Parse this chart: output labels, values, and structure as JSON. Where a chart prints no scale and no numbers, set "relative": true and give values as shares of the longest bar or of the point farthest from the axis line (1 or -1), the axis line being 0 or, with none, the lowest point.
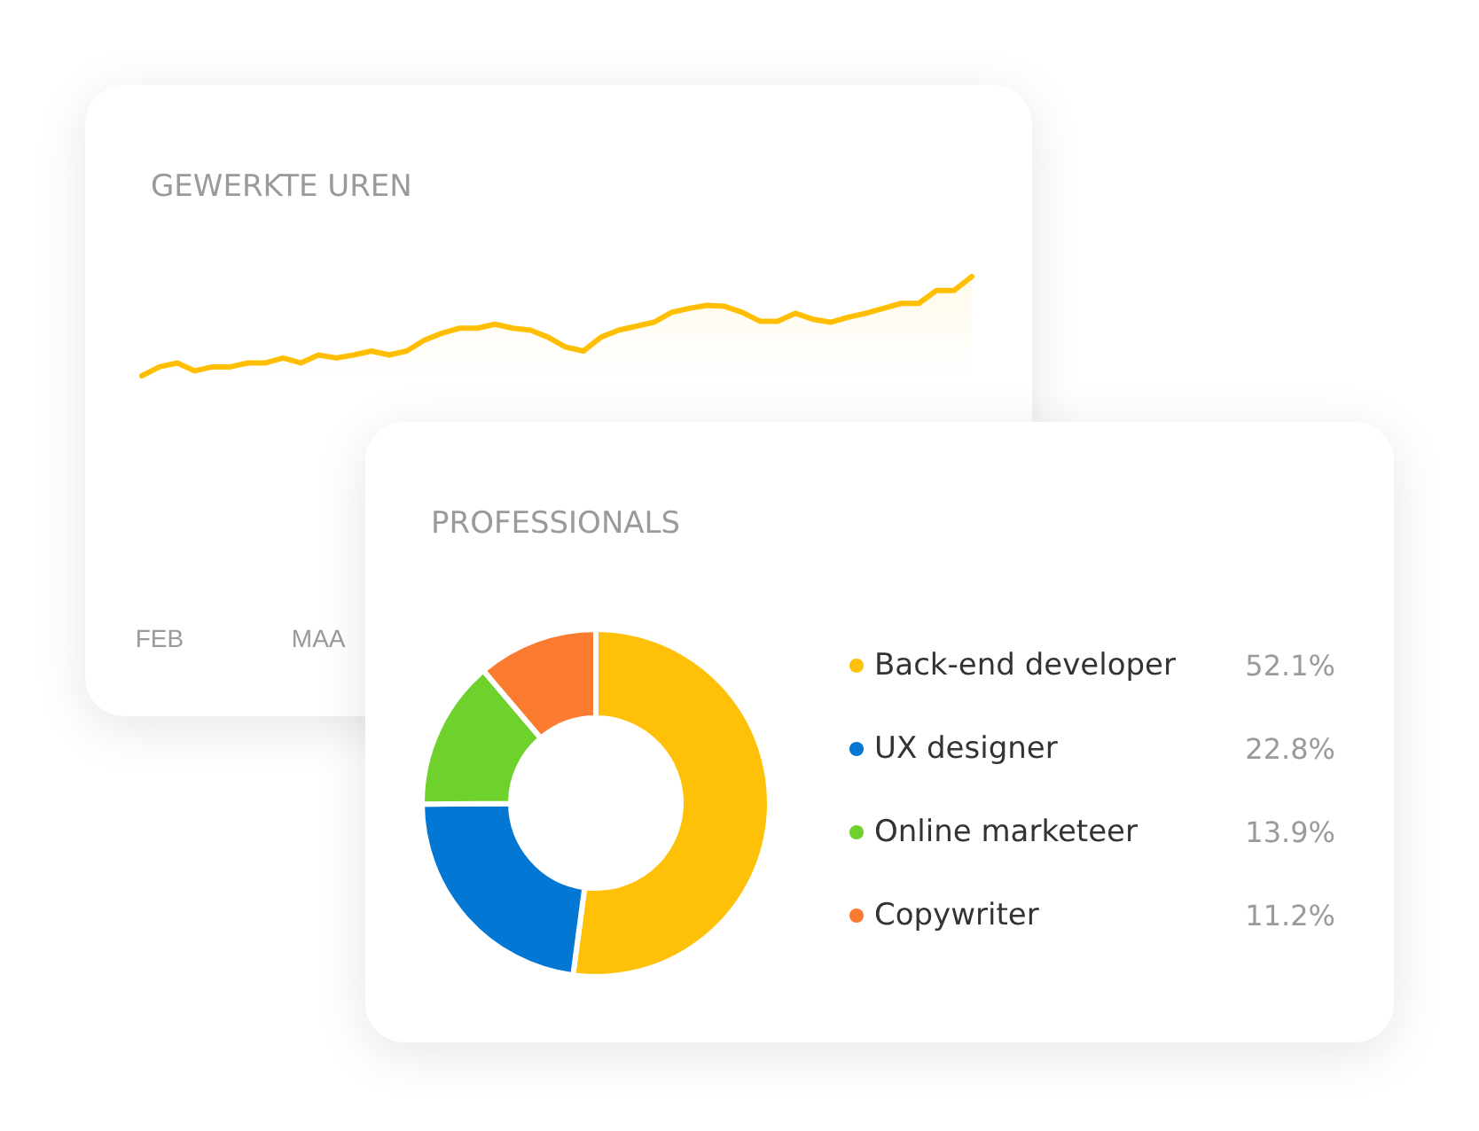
{
  "chart_data": [
    {
      "type": "area",
      "title": "GEWERKTE UREN",
      "relative": true,
      "tick_labels": "x",
      "grid": false,
      "legend": false,
      "marker": "none",
      "line_style": "solid",
      "categories": [
        null,
        "FEB",
        null,
        null,
        null,
        null,
        null,
        null,
        null,
        null,
        "MAA",
        null,
        null,
        null,
        null,
        null,
        null,
        null,
        null,
        null,
        null,
        null,
        null,
        null,
        null,
        null,
        null,
        null,
        null,
        null,
        null,
        null,
        null,
        null,
        null,
        null,
        null,
        null,
        null,
        null,
        null,
        null,
        null,
        null,
        null,
        null,
        null,
        null
      ],
      "series": [
        {
          "color": "#ffbf00",
          "values": [
            0,
            0.09,
            0.13,
            0.05,
            0.09,
            0.09,
            0.13,
            0.13,
            0.18,
            0.13,
            0.21,
            0.18,
            0.21,
            0.25,
            0.21,
            0.25,
            0.36,
            0.43,
            0.48,
            0.48,
            0.52,
            0.48,
            0.46,
            0.39,
            0.29,
            0.25,
            0.39,
            0.46,
            0.5,
            0.54,
            0.64,
            0.68,
            0.71,
            0.7,
            0.64,
            0.55,
            0.55,
            0.63,
            0.57,
            0.54,
            0.59,
            0.63,
            0.68,
            0.73,
            0.73,
            0.86,
            0.86,
            1
          ]
        }
      ]
    },
    {
      "type": "donut",
      "title": "PROFESSIONALS",
      "legend": "right",
      "data_labels": true,
      "categories": [
        "Back-end developer",
        "UX designer",
        "Online marketeer",
        "Copywriter"
      ],
      "values": [
        52.1,
        22.8,
        13.9,
        11.2
      ],
      "value_labels": [
        "52.1%",
        "22.8%",
        "13.9%",
        "11.2%"
      ],
      "colors": [
        "#ffc107",
        "#0277d4",
        "#6fd12b",
        "#fb7b30"
      ]
    }
  ]
}
